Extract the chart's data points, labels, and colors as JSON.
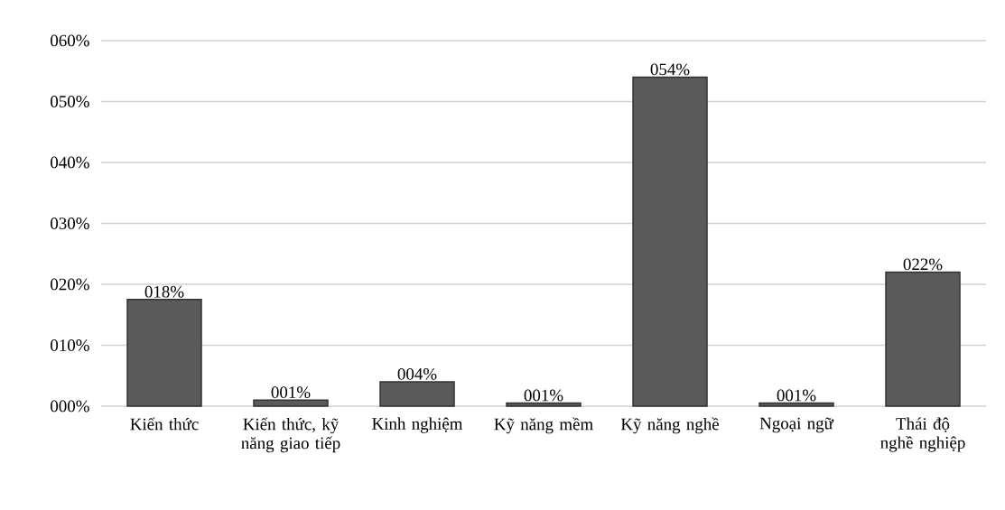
{
  "chart_data": {
    "type": "bar",
    "categories": [
      "Kiến thức",
      "Kiến thức, kỹ năng giao tiếp",
      "Kinh nghiệm",
      "Kỹ năng mềm",
      "Kỹ năng nghề",
      "Ngoại ngữ",
      "Thái độ nghề nghiệp"
    ],
    "values": [
      17.5,
      1,
      4,
      0.5,
      54,
      0.5,
      22
    ],
    "value_labels": [
      "018%",
      "001%",
      "004%",
      "001%",
      "054%",
      "001%",
      "022%"
    ],
    "color": "#5a5a5a",
    "ylim": [
      0,
      60
    ],
    "yticks": [
      {
        "value": 0,
        "label": "000%"
      },
      {
        "value": 10,
        "label": "010%"
      },
      {
        "value": 20,
        "label": "020%"
      },
      {
        "value": 30,
        "label": "030%"
      },
      {
        "value": 40,
        "label": "040%"
      },
      {
        "value": 50,
        "label": "050%"
      },
      {
        "value": 60,
        "label": "060%"
      }
    ],
    "grid": "y"
  }
}
